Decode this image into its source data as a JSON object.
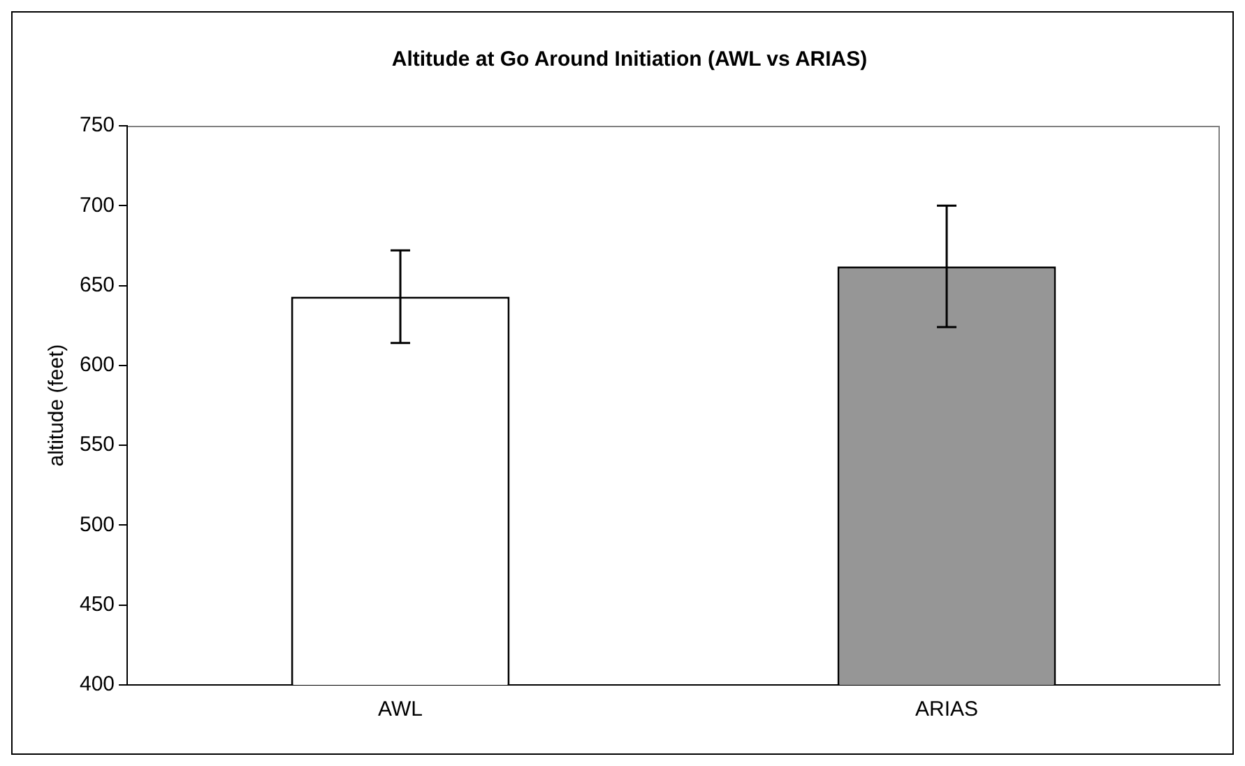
{
  "chart_data": {
    "type": "bar",
    "title": "Altitude at Go Around Initiation (AWL vs ARIAS)",
    "ylabel": "altitude (feet)",
    "categories": [
      "AWL",
      "ARIAS"
    ],
    "values": [
      643,
      662
    ],
    "colors": [
      "#ffffff",
      "#969696"
    ],
    "errors": [
      29,
      38
    ],
    "ylim": [
      400,
      750
    ],
    "yticks": [
      400,
      450,
      500,
      550,
      600,
      650,
      700,
      750
    ],
    "grid": false,
    "legend": false
  }
}
